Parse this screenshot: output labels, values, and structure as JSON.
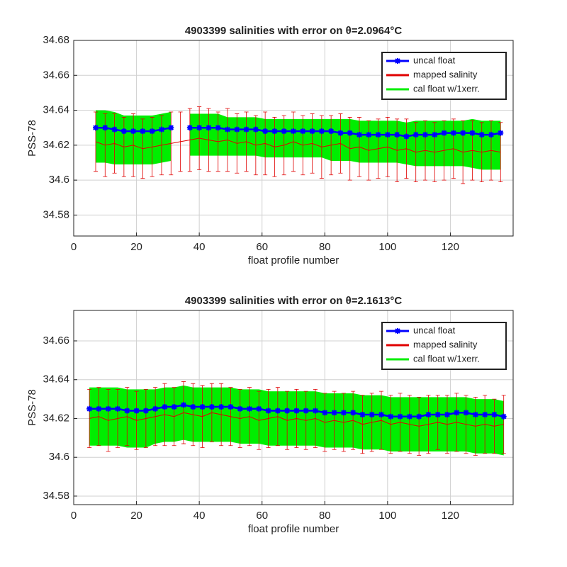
{
  "chart_data": [
    {
      "type": "errorbar",
      "title": "4903399 salinities with error on θ=2.0964°C",
      "xlabel": "float profile number",
      "ylabel": "PSS-78",
      "xlim": [
        0,
        140
      ],
      "xticks": [
        0,
        20,
        40,
        60,
        80,
        100,
        120
      ],
      "ylim": [
        34.568,
        34.68
      ],
      "yticks": [
        34.58,
        34.6,
        34.62,
        34.64,
        34.66,
        34.68
      ],
      "grid": true,
      "legend": "top-right",
      "x": [
        7,
        10,
        13,
        16,
        19,
        22,
        25,
        28,
        31,
        34,
        37,
        40,
        43,
        46,
        49,
        52,
        55,
        58,
        61,
        64,
        67,
        70,
        73,
        76,
        79,
        82,
        85,
        88,
        91,
        94,
        97,
        100,
        103,
        106,
        109,
        112,
        115,
        118,
        121,
        124,
        127,
        130,
        133,
        136
      ],
      "series": [
        {
          "name": "uncal float",
          "color": "#0000ff",
          "values": [
            34.63,
            34.63,
            34.629,
            34.628,
            34.628,
            34.628,
            34.628,
            34.629,
            34.63,
            null,
            34.63,
            34.63,
            34.63,
            34.63,
            34.629,
            34.629,
            34.629,
            34.629,
            34.628,
            34.628,
            34.628,
            34.628,
            34.628,
            34.628,
            34.628,
            34.628,
            34.627,
            34.627,
            34.626,
            34.626,
            34.626,
            34.626,
            34.626,
            34.625,
            34.626,
            34.626,
            34.626,
            34.627,
            34.627,
            34.627,
            34.627,
            34.626,
            34.626,
            34.627
          ]
        },
        {
          "name": "mapped salinity",
          "color": "#e00000",
          "values": [
            34.622,
            34.62,
            34.621,
            34.619,
            34.62,
            34.618,
            34.619,
            34.62,
            34.621,
            34.622,
            34.623,
            34.624,
            34.623,
            34.622,
            34.623,
            34.621,
            34.622,
            34.62,
            34.621,
            34.619,
            34.62,
            34.622,
            34.62,
            34.621,
            34.619,
            34.62,
            34.621,
            34.618,
            34.619,
            34.617,
            34.618,
            34.619,
            34.617,
            34.618,
            34.616,
            34.617,
            34.616,
            34.617,
            34.618,
            34.616,
            34.617,
            34.616,
            34.617,
            34.616
          ],
          "errors": [
            0.017,
            0.018,
            0.017,
            0.017,
            0.018,
            0.017,
            0.017,
            0.017,
            0.018,
            0.017,
            0.018,
            0.018,
            0.018,
            0.017,
            0.018,
            0.017,
            0.017,
            0.017,
            0.018,
            0.017,
            0.017,
            0.017,
            0.017,
            0.017,
            0.018,
            0.017,
            0.017,
            0.018,
            0.017,
            0.017,
            0.017,
            0.017,
            0.018,
            0.017,
            0.017,
            0.017,
            0.017,
            0.017,
            0.017,
            0.018,
            0.017,
            0.017,
            0.017,
            0.017
          ]
        },
        {
          "name": "cal float w/1xerr.",
          "color": "#00ee00",
          "values": [
            34.625,
            34.625,
            34.624,
            34.623,
            34.623,
            34.623,
            34.623,
            34.624,
            34.625,
            null,
            34.626,
            34.626,
            34.626,
            34.626,
            34.625,
            34.625,
            34.625,
            34.625,
            34.624,
            34.624,
            34.624,
            34.624,
            34.624,
            34.624,
            34.624,
            34.623,
            34.623,
            34.623,
            34.622,
            34.622,
            34.622,
            34.622,
            34.622,
            34.621,
            34.621,
            34.621,
            34.621,
            34.621,
            34.621,
            34.621,
            34.621,
            34.62,
            34.62,
            34.62
          ],
          "errors": [
            0.015,
            0.015,
            0.015,
            0.014,
            0.014,
            0.014,
            0.014,
            0.014,
            0.014,
            null,
            0.012,
            0.012,
            0.012,
            0.012,
            0.011,
            0.011,
            0.011,
            0.011,
            0.011,
            0.011,
            0.011,
            0.011,
            0.011,
            0.011,
            0.011,
            0.012,
            0.012,
            0.012,
            0.012,
            0.012,
            0.012,
            0.012,
            0.012,
            0.012,
            0.013,
            0.013,
            0.013,
            0.013,
            0.013,
            0.013,
            0.014,
            0.014,
            0.014,
            0.014
          ]
        }
      ]
    },
    {
      "type": "errorbar",
      "title": "4903399 salinities with error on θ=2.1613°C",
      "xlabel": "float profile number",
      "ylabel": "PSS-78",
      "xlim": [
        0,
        140
      ],
      "xticks": [
        0,
        20,
        40,
        60,
        80,
        100,
        120
      ],
      "ylim": [
        34.5756,
        34.6757
      ],
      "yticks": [
        34.58,
        34.6,
        34.62,
        34.64,
        34.66
      ],
      "grid": true,
      "legend": "top-right",
      "x": [
        5,
        8,
        11,
        14,
        17,
        20,
        23,
        26,
        29,
        32,
        35,
        38,
        41,
        44,
        47,
        50,
        53,
        56,
        59,
        62,
        65,
        68,
        71,
        74,
        77,
        80,
        83,
        86,
        89,
        92,
        95,
        98,
        101,
        104,
        107,
        110,
        113,
        116,
        119,
        122,
        125,
        128,
        131,
        134,
        137
      ],
      "series": [
        {
          "name": "uncal float",
          "color": "#0000ff",
          "values": [
            34.625,
            34.625,
            34.625,
            34.625,
            34.624,
            34.624,
            34.624,
            34.625,
            34.626,
            34.626,
            34.627,
            34.626,
            34.626,
            34.626,
            34.626,
            34.626,
            34.625,
            34.625,
            34.625,
            34.624,
            34.624,
            34.624,
            34.624,
            34.624,
            34.624,
            34.623,
            34.623,
            34.623,
            34.623,
            34.622,
            34.622,
            34.622,
            34.621,
            34.621,
            34.621,
            34.621,
            34.622,
            34.622,
            34.622,
            34.623,
            34.623,
            34.622,
            34.622,
            34.622,
            34.621
          ]
        },
        {
          "name": "mapped salinity",
          "color": "#e00000",
          "values": [
            34.62,
            34.621,
            34.619,
            34.62,
            34.621,
            34.619,
            34.62,
            34.621,
            34.622,
            34.621,
            34.623,
            34.622,
            34.621,
            34.623,
            34.622,
            34.621,
            34.62,
            34.621,
            34.619,
            34.62,
            34.621,
            34.619,
            34.62,
            34.619,
            34.62,
            34.618,
            34.619,
            34.618,
            34.619,
            34.617,
            34.618,
            34.619,
            34.617,
            34.618,
            34.617,
            34.616,
            34.617,
            34.618,
            34.617,
            34.618,
            34.617,
            34.616,
            34.617,
            34.616,
            34.617
          ],
          "errors": [
            0.015,
            0.015,
            0.016,
            0.015,
            0.015,
            0.015,
            0.015,
            0.015,
            0.016,
            0.015,
            0.016,
            0.016,
            0.016,
            0.015,
            0.016,
            0.015,
            0.015,
            0.015,
            0.015,
            0.015,
            0.015,
            0.015,
            0.015,
            0.015,
            0.015,
            0.015,
            0.015,
            0.015,
            0.015,
            0.015,
            0.015,
            0.015,
            0.015,
            0.015,
            0.015,
            0.015,
            0.015,
            0.014,
            0.015,
            0.015,
            0.015,
            0.015,
            0.015,
            0.014,
            0.015
          ]
        },
        {
          "name": "cal float w/1xerr.",
          "color": "#00ee00",
          "values": [
            34.621,
            34.621,
            34.621,
            34.621,
            34.62,
            34.62,
            34.62,
            34.621,
            34.622,
            34.622,
            34.623,
            34.622,
            34.622,
            34.622,
            34.622,
            34.622,
            34.621,
            34.621,
            34.621,
            34.62,
            34.62,
            34.62,
            34.62,
            34.62,
            34.62,
            34.619,
            34.619,
            34.619,
            34.619,
            34.618,
            34.618,
            34.618,
            34.617,
            34.617,
            34.617,
            34.617,
            34.617,
            34.617,
            34.617,
            34.617,
            34.617,
            34.616,
            34.616,
            34.616,
            34.615
          ],
          "errors": [
            0.015,
            0.015,
            0.015,
            0.015,
            0.015,
            0.015,
            0.015,
            0.014,
            0.014,
            0.014,
            0.014,
            0.014,
            0.014,
            0.014,
            0.014,
            0.014,
            0.014,
            0.014,
            0.014,
            0.014,
            0.014,
            0.014,
            0.014,
            0.014,
            0.014,
            0.014,
            0.014,
            0.014,
            0.014,
            0.014,
            0.014,
            0.014,
            0.014,
            0.014,
            0.014,
            0.014,
            0.014,
            0.014,
            0.014,
            0.014,
            0.014,
            0.014,
            0.014,
            0.014,
            0.014
          ]
        }
      ]
    }
  ]
}
